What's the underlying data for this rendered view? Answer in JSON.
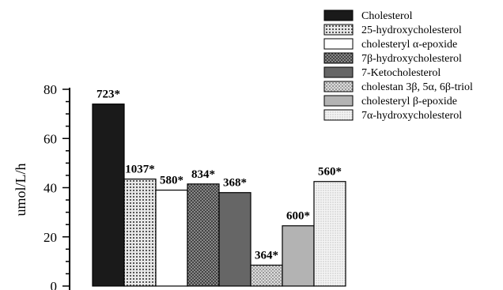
{
  "chart_data": {
    "type": "bar",
    "ylabel": "umol/L/h",
    "ylim": [
      0,
      80
    ],
    "yticks": [
      0,
      20,
      40,
      60,
      80
    ],
    "legend_position": "top-right",
    "series": [
      {
        "name": "Cholesterol",
        "value": 74,
        "label": "723*",
        "fill": "#1a1a1a",
        "pattern": "solid"
      },
      {
        "name": "25-hydroxycholesterol",
        "value": 43.5,
        "label": "1037*",
        "fill": "#b8b8b8",
        "pattern": "grid"
      },
      {
        "name": "cholesteryl α-epoxide",
        "value": 39,
        "label": "580*",
        "fill": "#ffffff",
        "pattern": "none"
      },
      {
        "name": "7β-hydroxycholesterol",
        "value": 41.5,
        "label": "834*",
        "fill": "#8a8a8a",
        "pattern": "cross"
      },
      {
        "name": "7-Ketocholesterol",
        "value": 38,
        "label": "368*",
        "fill": "#666666",
        "pattern": "solid"
      },
      {
        "name": "cholestan 3β, 5α, 6β-triol",
        "value": 8.5,
        "label": "364*",
        "fill": "#c8c8c8",
        "pattern": "dots"
      },
      {
        "name": "cholesteryl β-epoxide",
        "value": 24.5,
        "label": "600*",
        "fill": "#b3b3b3",
        "pattern": "solid"
      },
      {
        "name": "7α-hydroxycholesterol",
        "value": 42.5,
        "label": "560*",
        "fill": "#f0f0f0",
        "pattern": "fine"
      }
    ]
  }
}
